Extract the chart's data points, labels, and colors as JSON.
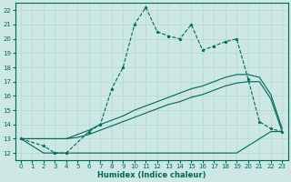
{
  "xlabel": "Humidex (Indice chaleur)",
  "bg_color": "#cde8e4",
  "grid_color": "#b0d8d0",
  "line_color": "#006655",
  "xlim": [
    -0.5,
    23.5
  ],
  "ylim": [
    11.5,
    22.5
  ],
  "xticks": [
    0,
    1,
    2,
    3,
    4,
    5,
    6,
    7,
    8,
    9,
    10,
    11,
    12,
    13,
    14,
    15,
    16,
    17,
    18,
    19,
    20,
    21,
    22,
    23
  ],
  "yticks": [
    12,
    13,
    14,
    15,
    16,
    17,
    18,
    19,
    20,
    21,
    22
  ],
  "series": [
    {
      "x": [
        0,
        1,
        2,
        3,
        4,
        5,
        6,
        7,
        8,
        9,
        10,
        11,
        12,
        13,
        14,
        15,
        16,
        17,
        18,
        19,
        20,
        21,
        22,
        23
      ],
      "y": [
        13,
        12.5,
        12,
        12,
        12,
        12,
        12,
        12,
        12,
        12,
        12,
        12,
        12,
        12,
        12,
        12,
        12,
        12,
        12,
        12,
        12.5,
        13,
        13.5,
        13.5
      ],
      "style": "-",
      "marker": null,
      "lw": 0.8
    },
    {
      "x": [
        0,
        1,
        2,
        3,
        4,
        5,
        6,
        7,
        8,
        9,
        10,
        11,
        12,
        13,
        14,
        15,
        16,
        17,
        18,
        19,
        20,
        21,
        22,
        23
      ],
      "y": [
        13,
        13,
        13,
        13,
        13,
        13.1,
        13.3,
        13.6,
        13.9,
        14.2,
        14.5,
        14.8,
        15.1,
        15.4,
        15.6,
        15.9,
        16.1,
        16.4,
        16.7,
        16.9,
        17.0,
        17.0,
        15.8,
        13.5
      ],
      "style": "-",
      "marker": null,
      "lw": 0.8
    },
    {
      "x": [
        0,
        1,
        2,
        3,
        4,
        5,
        6,
        7,
        8,
        9,
        10,
        11,
        12,
        13,
        14,
        15,
        16,
        17,
        18,
        19,
        20,
        21,
        22,
        23
      ],
      "y": [
        13,
        13,
        13,
        13,
        13,
        13.3,
        13.6,
        14.0,
        14.3,
        14.6,
        15.0,
        15.3,
        15.6,
        15.9,
        16.2,
        16.5,
        16.7,
        17.0,
        17.3,
        17.5,
        17.5,
        17.3,
        16.1,
        13.7
      ],
      "style": "-",
      "marker": null,
      "lw": 0.8
    },
    {
      "x": [
        0,
        2,
        3,
        4,
        6,
        7,
        8,
        9,
        10,
        11,
        12,
        13,
        14,
        15,
        16,
        17,
        18,
        19,
        20,
        21,
        22,
        23
      ],
      "y": [
        13,
        12.5,
        12,
        12,
        13.5,
        14.0,
        16.5,
        18.0,
        21.0,
        22.2,
        20.5,
        20.2,
        20.0,
        21.0,
        19.2,
        19.5,
        19.8,
        20.0,
        17.2,
        14.2,
        13.7,
        13.5
      ],
      "style": "--",
      "marker": "*",
      "lw": 0.8
    }
  ]
}
